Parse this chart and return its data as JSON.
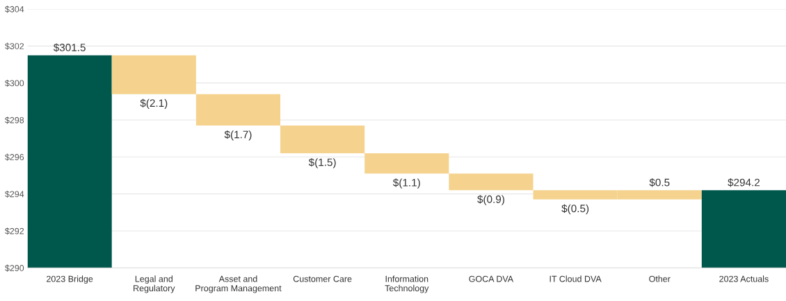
{
  "chart_data": {
    "type": "bar",
    "categories": [
      "2023 Bridge",
      "Legal and\nRegulatory",
      "Asset and\nProgram Management",
      "Customer Care",
      "Information\nTechnology",
      "GOCA DVA",
      "IT Cloud DVA",
      "Other",
      "2023 Actuals"
    ],
    "values": [
      301.5,
      -2.1,
      -1.7,
      -1.5,
      -1.1,
      -0.9,
      -0.5,
      0.5,
      294.2
    ],
    "base": [
      0,
      301.5,
      299.4,
      297.7,
      296.2,
      295.1,
      294.2,
      293.7,
      0
    ],
    "colors": [
      "#00574b",
      "#f5d38f",
      "#f5d38f",
      "#f5d38f",
      "#f5d38f",
      "#f5d38f",
      "#f5d38f",
      "#f5d38f",
      "#00574b"
    ],
    "value_labels": [
      "$301.5",
      "$(2.1)",
      "$(1.7)",
      "$(1.5)",
      "$(1.1)",
      "$(0.9)",
      "$(0.5)",
      "$0.5",
      "$294.2"
    ],
    "ylim": [
      290,
      304
    ],
    "yticks": [
      {
        "value": 290,
        "label": "$290"
      },
      {
        "value": 292,
        "label": "$292"
      },
      {
        "value": 294,
        "label": "$294"
      },
      {
        "value": 296,
        "label": "$296"
      },
      {
        "value": 298,
        "label": "$298"
      },
      {
        "value": 300,
        "label": "$300"
      },
      {
        "value": 302,
        "label": "$302"
      },
      {
        "value": 304,
        "label": "$304"
      }
    ],
    "grid": "y"
  }
}
